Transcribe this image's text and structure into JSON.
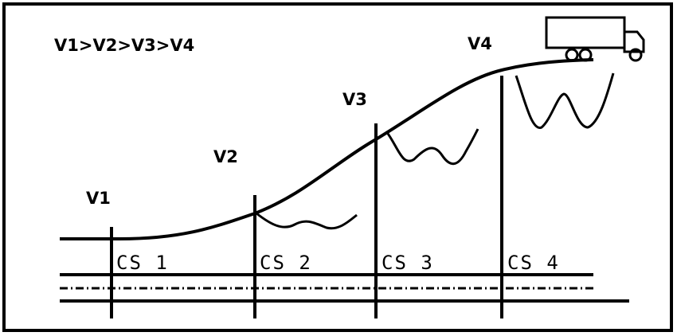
{
  "title": "V1>V2>V3>V4",
  "sections": [
    {
      "velocity": "V1",
      "label": "CS 1"
    },
    {
      "velocity": "V2",
      "label": "CS 2"
    },
    {
      "velocity": "V3",
      "label": "CS 3"
    },
    {
      "velocity": "V4",
      "label": "CS 4"
    }
  ]
}
